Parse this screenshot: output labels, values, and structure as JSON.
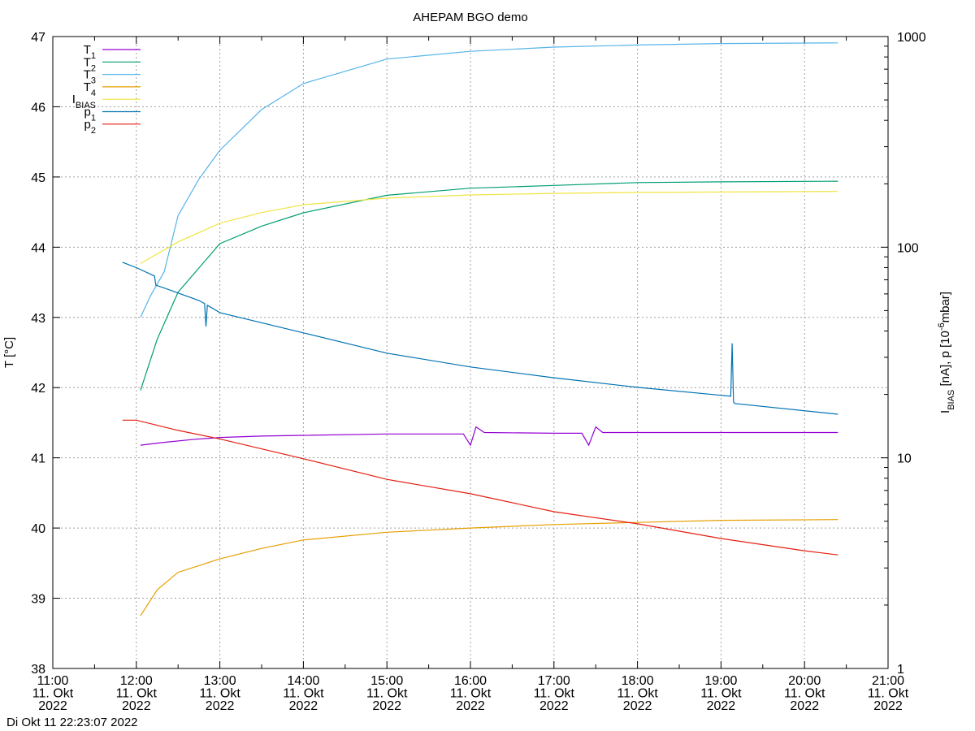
{
  "chart_data": {
    "type": "line",
    "title": "AHEPAM BGO demo",
    "ylabel": "T [°C]",
    "y2label": [
      "I",
      "BIAS",
      " [nA], p [10",
      "-6",
      "mbar]"
    ],
    "footer": "Di Okt 11 22:23:07 2022",
    "xlim": [
      "11:00",
      "21:00"
    ],
    "xticks": [
      {
        "value": "11:00",
        "label": [
          "11:00",
          "11. Okt",
          "2022"
        ]
      },
      {
        "value": "12:00",
        "label": [
          "12:00",
          "11. Okt",
          "2022"
        ]
      },
      {
        "value": "13:00",
        "label": [
          "13:00",
          "11. Okt",
          "2022"
        ]
      },
      {
        "value": "14:00",
        "label": [
          "14:00",
          "11. Okt",
          "2022"
        ]
      },
      {
        "value": "15:00",
        "label": [
          "15:00",
          "11. Okt",
          "2022"
        ]
      },
      {
        "value": "16:00",
        "label": [
          "16:00",
          "11. Okt",
          "2022"
        ]
      },
      {
        "value": "17:00",
        "label": [
          "17:00",
          "11. Okt",
          "2022"
        ]
      },
      {
        "value": "18:00",
        "label": [
          "18:00",
          "11. Okt",
          "2022"
        ]
      },
      {
        "value": "19:00",
        "label": [
          "19:00",
          "11. Okt",
          "2022"
        ]
      },
      {
        "value": "20:00",
        "label": [
          "20:00",
          "11. Okt",
          "2022"
        ]
      },
      {
        "value": "21:00",
        "label": [
          "21:00",
          "11. Okt",
          "2022"
        ]
      }
    ],
    "xminor": 2,
    "ylim": [
      38,
      47
    ],
    "yticks": [
      38,
      39,
      40,
      41,
      42,
      43,
      44,
      45,
      46,
      47
    ],
    "y2lim": [
      1,
      1000
    ],
    "y2ticks": [
      1,
      10,
      100,
      1000
    ],
    "y2log": true,
    "grid": true,
    "legend": "top-left",
    "series": [
      {
        "name": [
          "T",
          "1"
        ],
        "color": "#9400d3",
        "x": [
          "12:03",
          "12:20",
          "12:40",
          "13:00",
          "13:30",
          "14:00",
          "15:00",
          "15:55",
          "16:00",
          "16:04",
          "16:10",
          "17:00",
          "17:20",
          "17:25",
          "17:30",
          "17:35",
          "18:00",
          "19:00",
          "20:24"
        ],
        "values": [
          41.18,
          41.22,
          41.26,
          41.29,
          41.31,
          41.32,
          41.34,
          41.34,
          41.18,
          41.44,
          41.36,
          41.35,
          41.35,
          41.18,
          41.44,
          41.36,
          41.36,
          41.36,
          41.36
        ]
      },
      {
        "name": [
          "T",
          "2"
        ],
        "color": "#009e73",
        "x": [
          "12:03",
          "12:15",
          "12:30",
          "13:00",
          "13:30",
          "14:00",
          "15:00",
          "16:00",
          "17:00",
          "18:00",
          "19:00",
          "20:24"
        ],
        "values": [
          41.96,
          42.69,
          43.36,
          44.05,
          44.3,
          44.49,
          44.74,
          44.84,
          44.88,
          44.92,
          44.93,
          44.94
        ]
      },
      {
        "name": [
          "T",
          "3"
        ],
        "color": "#56b4e9",
        "x": [
          "12:03",
          "12:10",
          "12:20",
          "12:30",
          "12:45",
          "13:00",
          "13:30",
          "14:00",
          "15:00",
          "16:00",
          "17:00",
          "18:00",
          "19:00",
          "20:24"
        ],
        "values": [
          43.0,
          43.3,
          43.65,
          44.45,
          44.97,
          45.38,
          45.96,
          46.33,
          46.68,
          46.79,
          46.85,
          46.88,
          46.9,
          46.91
        ]
      },
      {
        "name": [
          "T",
          "4"
        ],
        "color": "#e69f00",
        "x": [
          "12:03",
          "12:15",
          "12:30",
          "13:00",
          "13:30",
          "14:00",
          "15:00",
          "16:00",
          "17:00",
          "18:00",
          "19:00",
          "20:24"
        ],
        "values": [
          38.75,
          39.12,
          39.37,
          39.56,
          39.71,
          39.83,
          39.94,
          40.0,
          40.05,
          40.08,
          40.11,
          40.12
        ]
      },
      {
        "name": [
          "I",
          "BIAS"
        ],
        "color": "#f0e442",
        "axis": "y2",
        "x": [
          "12:03",
          "12:30",
          "13:00",
          "13:30",
          "14:00",
          "15:00",
          "16:00",
          "17:00",
          "18:00",
          "20:24"
        ],
        "values": [
          83.6,
          106,
          130,
          146,
          159,
          171,
          177,
          180,
          182,
          184
        ]
      },
      {
        "name": [
          "p",
          "1"
        ],
        "color": "#0072b2",
        "axis": "y2",
        "x": [
          "11:50",
          "12:00",
          "12:13",
          "12:14",
          "12:20",
          "12:45",
          "12:49",
          "12:50",
          "12:51",
          "13:00",
          "14:00",
          "15:00",
          "16:00",
          "17:00",
          "18:00",
          "19:00",
          "19:07",
          "19:08",
          "19:09",
          "19:10",
          "20:24"
        ],
        "values": [
          84.8,
          80,
          73,
          66,
          64,
          55.8,
          54,
          42,
          53,
          48.9,
          39.2,
          31.4,
          27,
          24,
          21.6,
          19.8,
          19.6,
          35,
          18.4,
          18.1,
          16.1
        ]
      },
      {
        "name": [
          "p",
          "2"
        ],
        "color": "#e51e10",
        "axis": "y2",
        "x": [
          "11:50",
          "12:00",
          "12:30",
          "13:00",
          "14:00",
          "15:00",
          "16:00",
          "17:00",
          "18:00",
          "19:00",
          "20:00",
          "20:24"
        ],
        "values": [
          15.1,
          15.1,
          13.5,
          12.3,
          9.9,
          7.9,
          6.75,
          5.55,
          4.86,
          4.14,
          3.62,
          3.46
        ]
      }
    ]
  }
}
